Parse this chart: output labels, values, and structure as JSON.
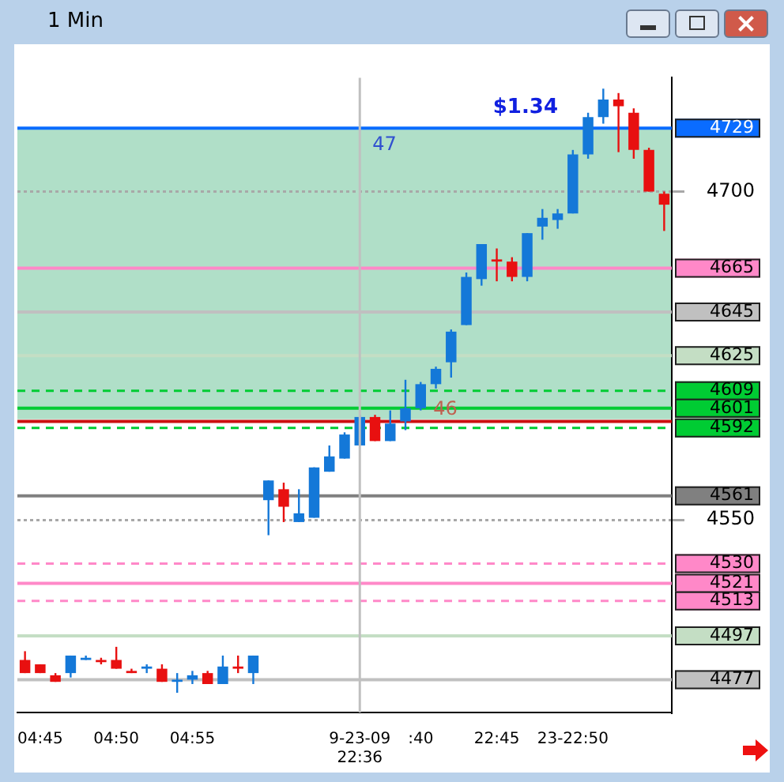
{
  "chart_data": {
    "type": "candlestick",
    "title": "1 Min",
    "categories": [
      null,
      "04:45",
      null,
      null,
      null,
      null,
      "04:50",
      null,
      null,
      null,
      null,
      "04:55",
      null,
      null,
      null,
      null,
      null,
      null,
      null,
      null,
      null,
      null,
      "9-23-09  22:36",
      null,
      null,
      null,
      ":40",
      null,
      null,
      null,
      null,
      "22:45",
      null,
      null,
      null,
      null,
      "23-22:50",
      null,
      null,
      null,
      null,
      null,
      null
    ],
    "ohlc": [
      [
        4486,
        4490,
        4480,
        4480
      ],
      [
        4484,
        4484,
        4480,
        4480
      ],
      [
        4479,
        4480,
        4476,
        4476
      ],
      [
        4480,
        4488,
        4478,
        4488
      ],
      [
        4486,
        4488,
        4486,
        4487
      ],
      [
        4486,
        4487,
        4484,
        4485
      ],
      [
        4486,
        4492,
        4482,
        4482
      ],
      [
        4481,
        4482,
        4480,
        4480
      ],
      [
        4482,
        4484,
        4480,
        4483
      ],
      [
        4482,
        4484,
        4476,
        4476
      ],
      [
        4476,
        4480,
        4471,
        4477
      ],
      [
        4477,
        4481,
        4475,
        4479
      ],
      [
        4480,
        4481,
        4475,
        4475
      ],
      [
        4475,
        4488,
        4475,
        4483
      ],
      [
        4483,
        4488,
        4480,
        4482
      ],
      [
        4480,
        4488,
        4475,
        4488
      ],
      [
        4559,
        4568,
        4543,
        4568
      ],
      [
        4564,
        4567,
        4549,
        4556
      ],
      [
        4549,
        4564,
        4549,
        4553
      ],
      [
        4551,
        4574,
        4551,
        4574
      ],
      [
        4572,
        4584,
        4572,
        4579
      ],
      [
        4578,
        4590,
        4578,
        4589
      ],
      [
        4584,
        4598,
        4584,
        4597
      ],
      [
        4597,
        4598,
        4586,
        4586
      ],
      [
        4586,
        4600,
        4586,
        4594
      ],
      [
        4595,
        4614,
        4591,
        4601
      ],
      [
        4601,
        4613,
        4600,
        4612
      ],
      [
        4612,
        4620,
        4610,
        4619
      ],
      [
        4622,
        4637,
        4615,
        4636
      ],
      [
        4639,
        4663,
        4639,
        4661
      ],
      [
        4660,
        4676,
        4657,
        4676
      ],
      [
        4669,
        4674,
        4659,
        4668
      ],
      [
        4668,
        4670,
        4659,
        4661
      ],
      [
        4661,
        4681,
        4659,
        4681
      ],
      [
        4684,
        4692,
        4678,
        4688
      ],
      [
        4687,
        4692,
        4683,
        4690
      ],
      [
        4690,
        4719,
        4690,
        4717
      ],
      [
        4717,
        4736,
        4715,
        4734
      ],
      [
        4734,
        4747,
        4731,
        4742
      ],
      [
        4742,
        4745,
        4718,
        4739
      ],
      [
        4736,
        4738,
        4715,
        4719
      ],
      [
        4719,
        4720,
        4700,
        4700
      ],
      [
        4699,
        4700,
        4682,
        4694
      ]
    ],
    "colors": [
      "#e81010",
      "#e81010",
      "#e81010",
      "#1478d8",
      "#1478d8",
      "#e81010",
      "#e81010",
      "#e81010",
      "#1478d8",
      "#e81010",
      "#1478d8",
      "#1478d8",
      "#e81010",
      "#1478d8",
      "#e81010",
      "#1478d8",
      "#1478d8",
      "#e81010",
      "#1478d8",
      "#1478d8",
      "#1478d8",
      "#1478d8",
      "#1478d8",
      "#e81010",
      "#1478d8",
      "#1478d8",
      "#1478d8",
      "#1478d8",
      "#1478d8",
      "#1478d8",
      "#1478d8",
      "#e81010",
      "#e81010",
      "#1478d8",
      "#1478d8",
      "#1478d8",
      "#1478d8",
      "#1478d8",
      "#1478d8",
      "#e81010",
      "#e81010",
      "#e81010",
      "#e81010"
    ],
    "ylim": [
      4462,
      4752
    ],
    "yticks": [
      4700,
      4550
    ],
    "grid": "y",
    "legend": false,
    "bands": [
      {
        "axis": "y",
        "from": 4596,
        "to": 4729,
        "color": "#b0dfc8"
      }
    ],
    "ref_lines": [
      {
        "axis": "x",
        "value": "9-23-09  22:36",
        "label": null,
        "color": "#c0c0c0"
      },
      {
        "axis": "y",
        "value": 4729,
        "label": "4729",
        "color": "#0a6cff"
      },
      {
        "axis": "y",
        "value": 4665,
        "label": "4665",
        "color": "#ff88c8"
      },
      {
        "axis": "y",
        "value": 4645,
        "label": "4645",
        "color": "#c0c0c0"
      },
      {
        "axis": "y",
        "value": 4625,
        "label": "4625",
        "color": "#c4dec4"
      },
      {
        "axis": "y",
        "value": 4609,
        "label": "4609",
        "color": "#00cc33",
        "line_style": "dashed"
      },
      {
        "axis": "y",
        "value": 4601,
        "label": "4601",
        "color": "#00cc33"
      },
      {
        "axis": "y",
        "value": 4595,
        "label": null,
        "color": "#cc1010"
      },
      {
        "axis": "y",
        "value": 4592,
        "label": "4592",
        "color": "#00cc33",
        "line_style": "dashed"
      },
      {
        "axis": "y",
        "value": 4561,
        "label": "4561",
        "color": "#808080"
      },
      {
        "axis": "y",
        "value": 4530,
        "label": "4530",
        "color": "#ff88c8",
        "line_style": "dashed"
      },
      {
        "axis": "y",
        "value": 4521,
        "label": "4521",
        "color": "#ff88c8"
      },
      {
        "axis": "y",
        "value": 4513,
        "label": "4513",
        "color": "#ff88c8",
        "line_style": "dashed"
      },
      {
        "axis": "y",
        "value": 4497,
        "label": "4497",
        "color": "#c4dec4"
      },
      {
        "axis": "y",
        "value": 4477,
        "label": "4477",
        "color": "#c0c0c0"
      }
    ],
    "annotations": [
      {
        "text": "47",
        "x": "9-23-09  22:36",
        "y": 4724
      },
      {
        "text": "46",
        "x": ":40",
        "y": 4598
      },
      {
        "text": "$1.34",
        "y": 4731
      }
    ]
  }
}
